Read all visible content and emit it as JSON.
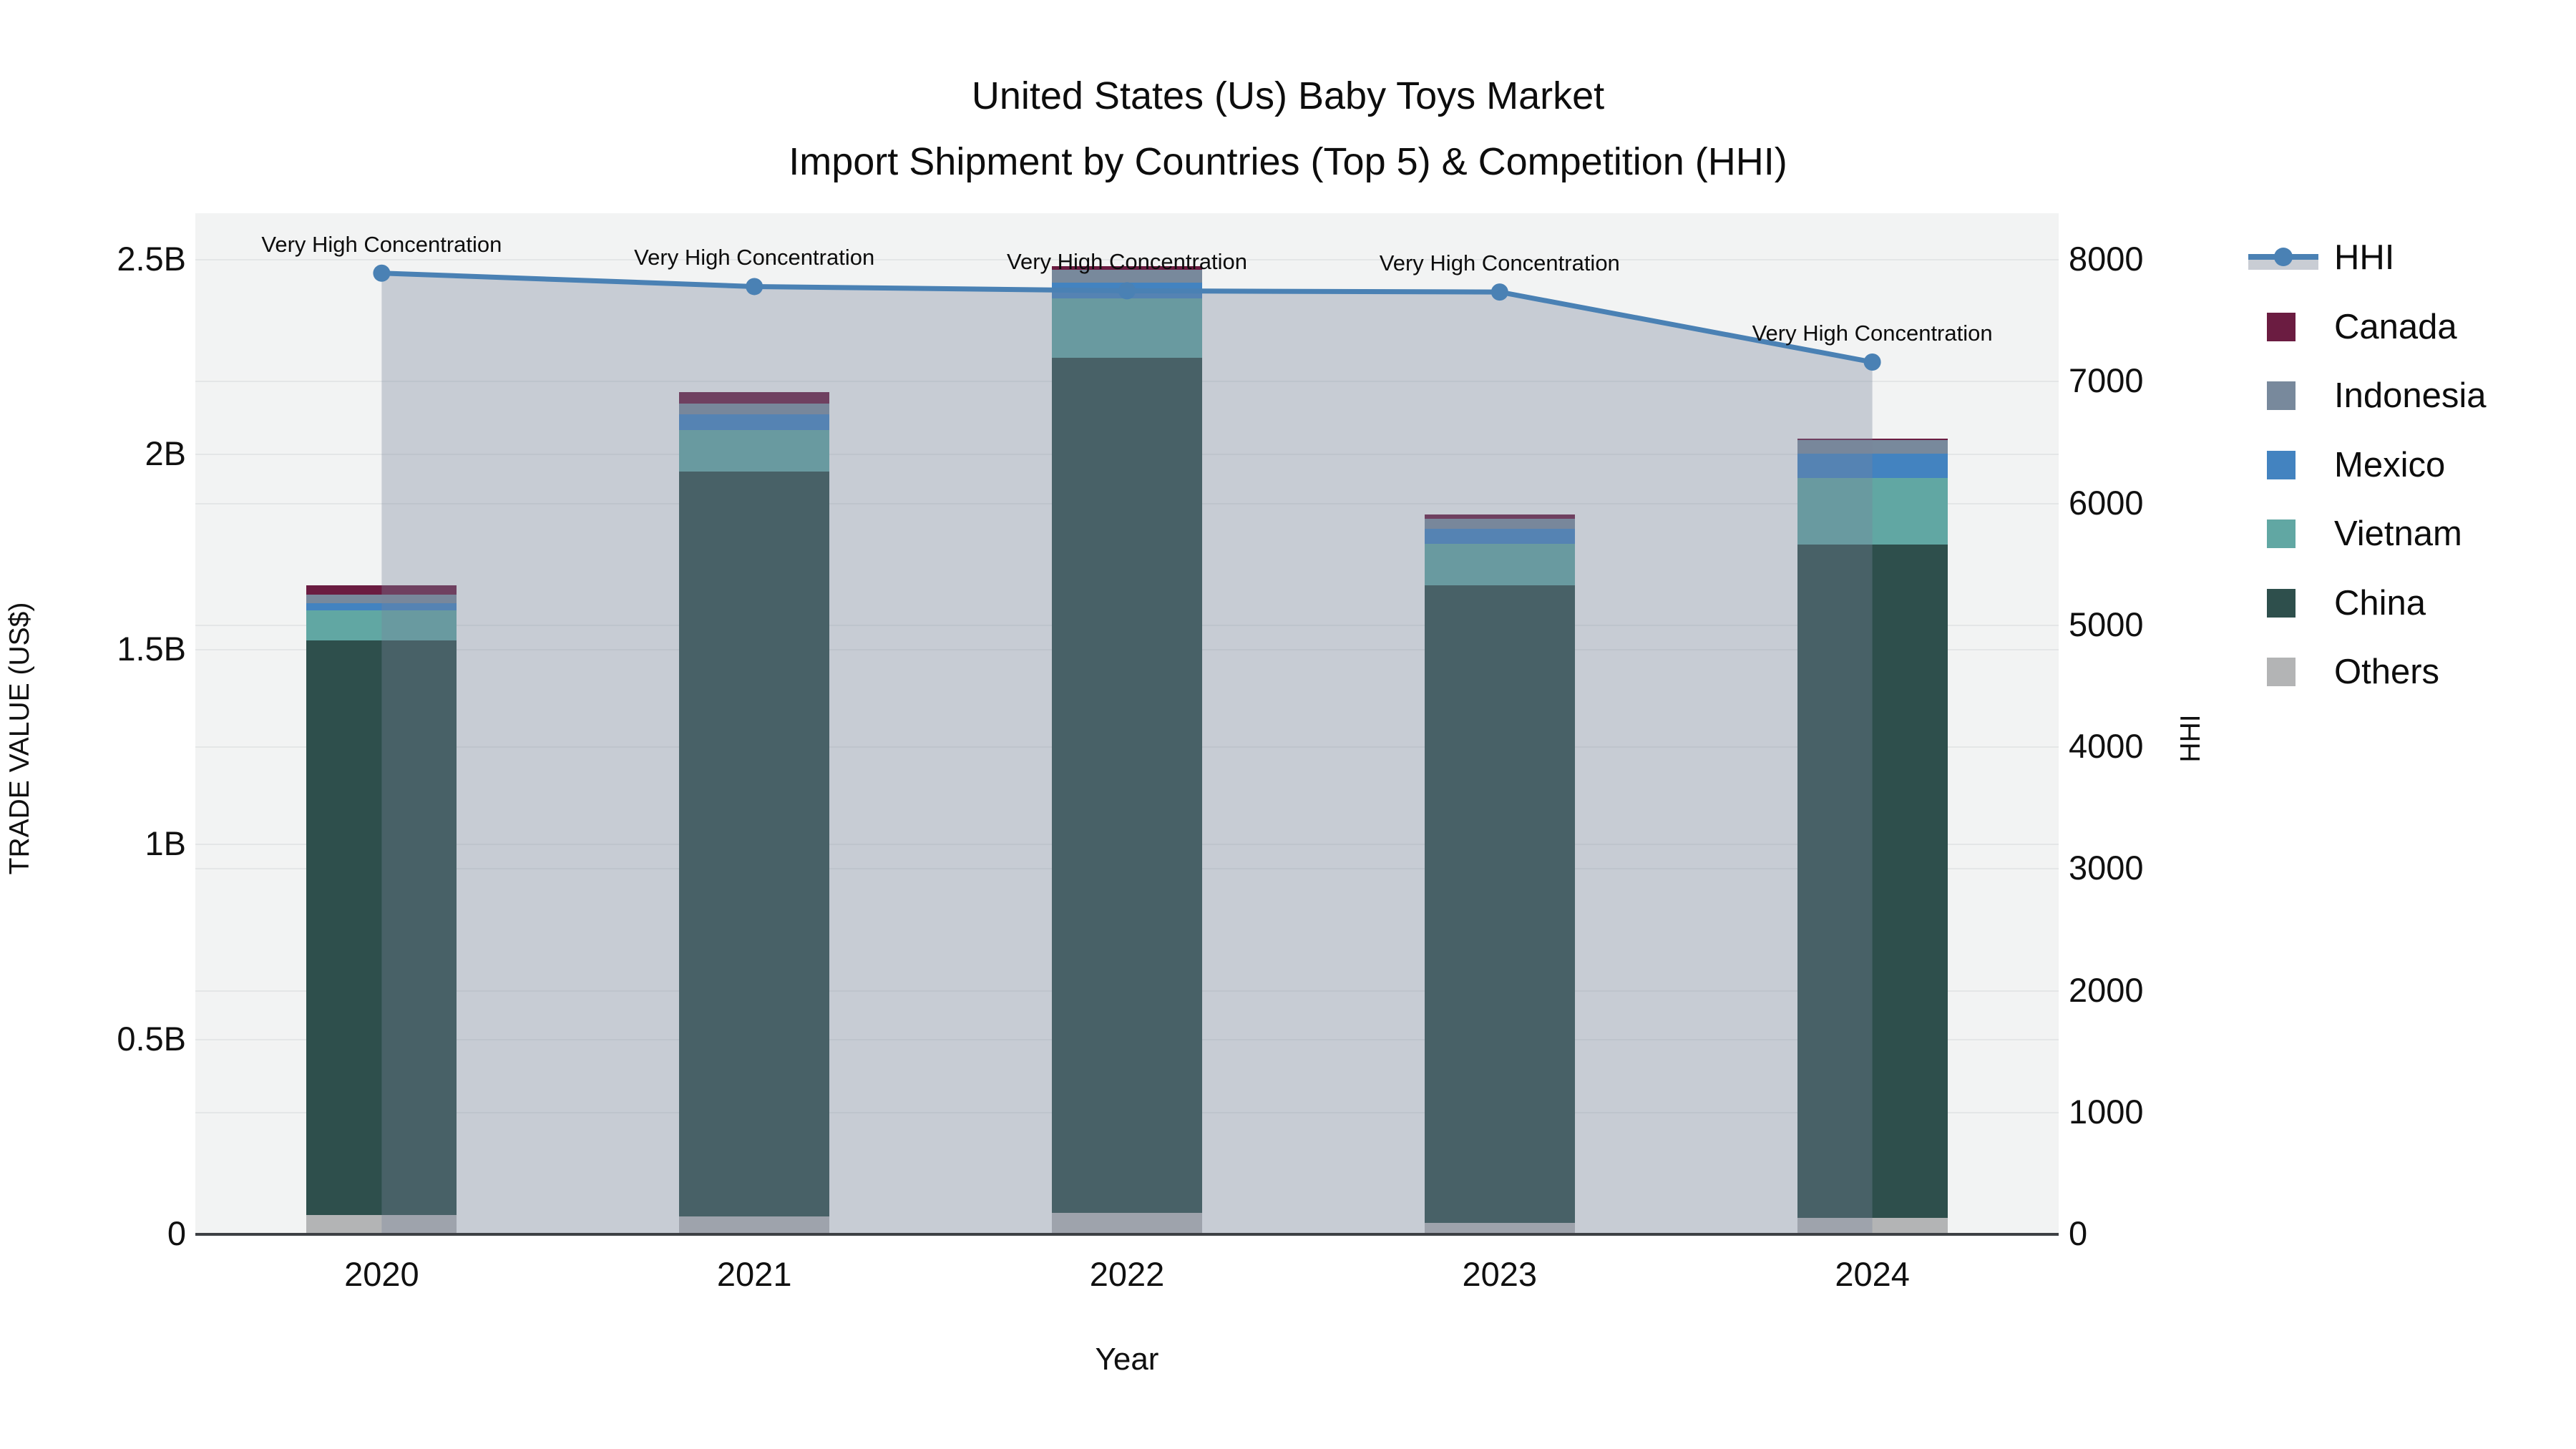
{
  "title": {
    "line1": "United States (Us) Baby Toys Market",
    "line2": "Import Shipment by Countries (Top 5) & Competition (HHI)"
  },
  "chart_data": {
    "type": "bar",
    "subtype": "stacked-bar-with-line-area-combo",
    "categories": [
      "2020",
      "2021",
      "2022",
      "2023",
      "2024"
    ],
    "unit": "US$ billions (left axis), HHI index (right axis)",
    "xlabel": "Year",
    "ylabel_left": "TRADE VALUE (US$)",
    "ylabel_right": "HHI",
    "ylim_left_B": [
      0,
      2.62
    ],
    "ylim_right": [
      0,
      8385
    ],
    "grid": true,
    "legend_position": "right-top",
    "stack_order_bottom_to_top": [
      "Others",
      "China",
      "Vietnam",
      "Mexico",
      "Indonesia",
      "Canada"
    ],
    "series": [
      {
        "name": "Canada",
        "color": "#6b1c41",
        "values": [
          0.024,
          0.029,
          0.009,
          0.011,
          0.004
        ]
      },
      {
        "name": "Indonesia",
        "color": "#78899c",
        "values": [
          0.022,
          0.028,
          0.033,
          0.026,
          0.035
        ]
      },
      {
        "name": "Mexico",
        "color": "#4383c0",
        "values": [
          0.018,
          0.039,
          0.04,
          0.037,
          0.061
        ]
      },
      {
        "name": "Vietnam",
        "color": "#61a7a3",
        "values": [
          0.077,
          0.108,
          0.152,
          0.108,
          0.171
        ]
      },
      {
        "name": "China",
        "color": "#2e4f4c",
        "values": [
          1.474,
          1.91,
          2.194,
          1.634,
          1.728
        ]
      },
      {
        "name": "Others",
        "color": "#b3b4b5",
        "values": [
          0.05,
          0.046,
          0.055,
          0.03,
          0.042
        ]
      }
    ],
    "bar_totals_B": [
      1.665,
      2.16,
      2.483,
      1.846,
      2.041
    ],
    "line_series": {
      "name": "HHI",
      "color": "#4a81b4",
      "area_fill": "rgba(121,133,154,0.35)",
      "values": [
        7890,
        7780,
        7745,
        7735,
        7160
      ]
    },
    "annotations": [
      {
        "category": "2020",
        "text": "Very High Concentration"
      },
      {
        "category": "2021",
        "text": "Very High Concentration"
      },
      {
        "category": "2022",
        "text": "Very High Concentration"
      },
      {
        "category": "2023",
        "text": "Very High Concentration"
      },
      {
        "category": "2024",
        "text": "Very High Concentration"
      }
    ],
    "left_ticks": [
      {
        "v": 0,
        "label": "0"
      },
      {
        "v": 0.5,
        "label": "0.5B"
      },
      {
        "v": 1,
        "label": "1B"
      },
      {
        "v": 1.5,
        "label": "1.5B"
      },
      {
        "v": 2,
        "label": "2B"
      },
      {
        "v": 2.5,
        "label": "2.5B"
      }
    ],
    "right_ticks": [
      {
        "v": 0,
        "label": "0"
      },
      {
        "v": 1000,
        "label": "1000"
      },
      {
        "v": 2000,
        "label": "2000"
      },
      {
        "v": 3000,
        "label": "3000"
      },
      {
        "v": 4000,
        "label": "4000"
      },
      {
        "v": 5000,
        "label": "5000"
      },
      {
        "v": 6000,
        "label": "6000"
      },
      {
        "v": 7000,
        "label": "7000"
      },
      {
        "v": 8000,
        "label": "8000"
      }
    ]
  },
  "legend": {
    "items": [
      {
        "label": "HHI",
        "type": "line"
      },
      {
        "label": "Canada",
        "type": "swatch"
      },
      {
        "label": "Indonesia",
        "type": "swatch"
      },
      {
        "label": "Mexico",
        "type": "swatch"
      },
      {
        "label": "Vietnam",
        "type": "swatch"
      },
      {
        "label": "China",
        "type": "swatch"
      },
      {
        "label": "Others",
        "type": "swatch"
      }
    ]
  },
  "colors": {
    "plot_background": "#f2f3f3",
    "figure_background": "#ffffff",
    "gridline": "#e4e6e7",
    "axis_line": "#3d4044",
    "hhi_line": "#4a81b4"
  }
}
